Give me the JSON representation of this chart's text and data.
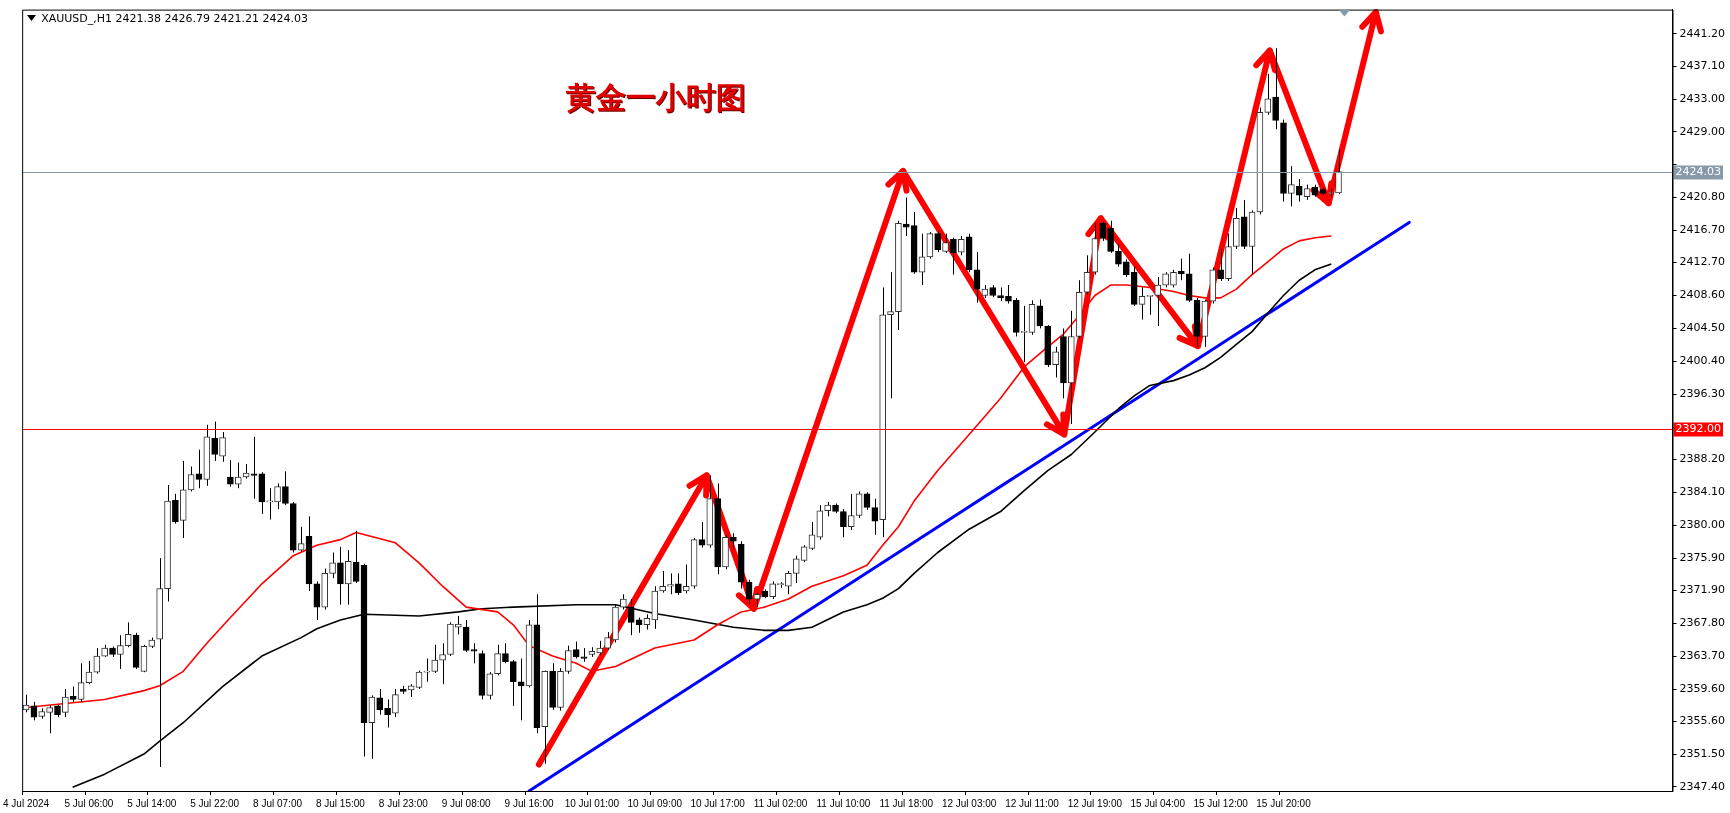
{
  "chart_data": {
    "type": "candlestick",
    "title": "XAUUSD_,H1  2421.38 2426.79 2421.21 2424.03",
    "subtitle": "黄金一小时图",
    "categories": [
      "4 Jul 2024",
      null,
      null,
      null,
      null,
      null,
      null,
      null,
      "5 Jul 06:00",
      null,
      null,
      null,
      null,
      null,
      null,
      null,
      "5 Jul 14:00",
      null,
      null,
      null,
      null,
      null,
      null,
      null,
      "5 Jul 22:00",
      null,
      null,
      null,
      null,
      null,
      null,
      null,
      "8 Jul 07:00",
      null,
      null,
      null,
      null,
      null,
      null,
      null,
      "8 Jul 15:00",
      null,
      null,
      null,
      null,
      null,
      null,
      null,
      "8 Jul 23:00",
      null,
      null,
      null,
      null,
      null,
      null,
      null,
      "9 Jul 08:00",
      null,
      null,
      null,
      null,
      null,
      null,
      null,
      "9 Jul 16:00",
      null,
      null,
      null,
      null,
      null,
      null,
      null,
      "10 Jul 01:00",
      null,
      null,
      null,
      null,
      null,
      null,
      null,
      "10 Jul 09:00",
      null,
      null,
      null,
      null,
      null,
      null,
      null,
      "10 Jul 17:00",
      null,
      null,
      null,
      null,
      null,
      null,
      null,
      "11 Jul 02:00",
      null,
      null,
      null,
      null,
      null,
      null,
      null,
      "11 Jul 10:00",
      null,
      null,
      null,
      null,
      null,
      null,
      null,
      "11 Jul 18:00",
      null,
      null,
      null,
      null,
      null,
      null,
      null,
      "12 Jul 03:00",
      null,
      null,
      null,
      null,
      null,
      null,
      null,
      "12 Jul 11:00",
      null,
      null,
      null,
      null,
      null,
      null,
      null,
      "12 Jul 19:00",
      null,
      null,
      null,
      null,
      null,
      null,
      null,
      "15 Jul 04:00",
      null,
      null,
      null,
      null,
      null,
      null,
      null,
      "15 Jul 12:00",
      null,
      null,
      null,
      null,
      null,
      null,
      null,
      "15 Jul 20:00",
      null,
      null,
      null,
      null,
      null,
      null,
      null,
      null,
      null,
      null,
      null,
      null,
      null,
      null,
      null,
      null,
      null,
      null,
      null,
      null,
      null,
      null,
      null,
      null,
      null,
      null,
      null,
      null,
      null,
      null,
      null,
      null,
      null,
      null,
      null,
      null,
      null,
      null,
      null,
      null,
      null,
      null,
      null,
      null,
      null,
      null,
      null,
      null,
      null
    ],
    "ohlc": [
      [
        2357.0,
        2358.9,
        2356.7,
        2357.6
      ],
      [
        2357.5,
        2358.0,
        2355.7,
        2356.1
      ],
      [
        2356.2,
        2357.2,
        2355.9,
        2356.8
      ],
      [
        2356.7,
        2357.6,
        2354.1,
        2357.3
      ],
      [
        2357.5,
        2357.6,
        2356.1,
        2356.4
      ],
      [
        2356.7,
        2359.6,
        2356.1,
        2358.6
      ],
      [
        2358.7,
        2359.9,
        2358.0,
        2358.3
      ],
      [
        2358.3,
        2362.8,
        2358.0,
        2360.4
      ],
      [
        2360.4,
        2363.1,
        2360.2,
        2361.7
      ],
      [
        2361.7,
        2364.7,
        2361.5,
        2363.7
      ],
      [
        2363.7,
        2365.1,
        2363.6,
        2364.7
      ],
      [
        2364.7,
        2364.9,
        2363.6,
        2363.9
      ],
      [
        2363.9,
        2366.3,
        2362.1,
        2365.0
      ],
      [
        2365.0,
        2367.9,
        2364.8,
        2366.4
      ],
      [
        2366.3,
        2366.6,
        2362.1,
        2362.3
      ],
      [
        2361.8,
        2365.1,
        2361.7,
        2364.9
      ],
      [
        2364.9,
        2366.0,
        2364.7,
        2365.7
      ],
      [
        2365.8,
        2375.9,
        2349.9,
        2372.1
      ],
      [
        2372.1,
        2385.0,
        2370.5,
        2383.0
      ],
      [
        2383.1,
        2383.9,
        2380.2,
        2380.4
      ],
      [
        2380.6,
        2388.0,
        2378.4,
        2384.4
      ],
      [
        2384.4,
        2387.3,
        2384.2,
        2386.3
      ],
      [
        2386.4,
        2389.4,
        2384.6,
        2385.7
      ],
      [
        2385.7,
        2392.5,
        2384.9,
        2391.0
      ],
      [
        2390.8,
        2392.9,
        2388.0,
        2388.8
      ],
      [
        2388.6,
        2391.6,
        2387.9,
        2390.9
      ],
      [
        2386.0,
        2388.1,
        2384.8,
        2385.1
      ],
      [
        2385.1,
        2387.8,
        2384.6,
        2386.0
      ],
      [
        2386.0,
        2387.6,
        2385.8,
        2386.5
      ],
      [
        2386.4,
        2391.0,
        2383.3,
        2386.2
      ],
      [
        2386.4,
        2386.6,
        2381.4,
        2382.9
      ],
      [
        2382.9,
        2384.6,
        2380.7,
        2382.9
      ],
      [
        2382.9,
        2385.2,
        2382.0,
        2384.8
      ],
      [
        2384.8,
        2386.7,
        2382.5,
        2382.7
      ],
      [
        2382.7,
        2382.9,
        2376.6,
        2376.9
      ],
      [
        2376.9,
        2379.8,
        2376.7,
        2377.7
      ],
      [
        2378.6,
        2381.1,
        2371.8,
        2372.7
      ],
      [
        2372.7,
        2373.0,
        2368.2,
        2369.8
      ],
      [
        2369.8,
        2374.6,
        2369.5,
        2374.0
      ],
      [
        2374.0,
        2376.6,
        2373.4,
        2375.3
      ],
      [
        2375.3,
        2377.3,
        2370.1,
        2372.7
      ],
      [
        2372.7,
        2376.9,
        2370.1,
        2375.5
      ],
      [
        2375.4,
        2379.3,
        2372.8,
        2373.0
      ],
      [
        2375.0,
        2375.2,
        2351.2,
        2355.4
      ],
      [
        2355.4,
        2358.8,
        2350.9,
        2358.6
      ],
      [
        2358.5,
        2359.6,
        2356.4,
        2357.0
      ],
      [
        2357.2,
        2358.3,
        2354.8,
        2356.4
      ],
      [
        2356.6,
        2359.6,
        2356.1,
        2358.9
      ],
      [
        2359.6,
        2360.0,
        2359.0,
        2359.3
      ],
      [
        2359.5,
        2360.2,
        2358.6,
        2360.0
      ],
      [
        2359.8,
        2361.9,
        2359.6,
        2361.7
      ],
      [
        2361.7,
        2363.4,
        2360.5,
        2361.8
      ],
      [
        2361.8,
        2365.1,
        2361.6,
        2363.2
      ],
      [
        2363.2,
        2365.3,
        2360.2,
        2363.9
      ],
      [
        2363.9,
        2367.9,
        2363.7,
        2367.7
      ],
      [
        2367.3,
        2368.7,
        2366.4,
        2367.7
      ],
      [
        2367.3,
        2368.2,
        2364.2,
        2364.4
      ],
      [
        2364.5,
        2365.3,
        2362.8,
        2364.3
      ],
      [
        2364.0,
        2364.4,
        2358.3,
        2358.8
      ],
      [
        2358.8,
        2361.7,
        2358.3,
        2361.5
      ],
      [
        2361.5,
        2365.1,
        2361.3,
        2364.0
      ],
      [
        2364.0,
        2365.3,
        2362.8,
        2363.0
      ],
      [
        2363.0,
        2363.2,
        2357.5,
        2360.5
      ],
      [
        2360.5,
        2363.4,
        2355.7,
        2360.0
      ],
      [
        2360.0,
        2368.2,
        2359.8,
        2367.6
      ],
      [
        2367.6,
        2371.4,
        2354.1,
        2354.8
      ],
      [
        2354.9,
        2361.9,
        2350.3,
        2361.8
      ],
      [
        2361.8,
        2362.8,
        2357.0,
        2357.3
      ],
      [
        2357.3,
        2362.2,
        2356.9,
        2361.8
      ],
      [
        2361.8,
        2365.0,
        2361.5,
        2364.4
      ],
      [
        2364.5,
        2365.5,
        2363.4,
        2363.6
      ],
      [
        2363.6,
        2364.7,
        2363.0,
        2363.4
      ],
      [
        2363.9,
        2364.8,
        2363.6,
        2364.3
      ],
      [
        2364.1,
        2365.6,
        2363.9,
        2364.7
      ],
      [
        2364.7,
        2366.7,
        2364.5,
        2366.0
      ],
      [
        2365.7,
        2370.1,
        2365.4,
        2369.8
      ],
      [
        2369.8,
        2371.4,
        2369.5,
        2370.8
      ],
      [
        2369.8,
        2370.8,
        2366.3,
        2367.9
      ],
      [
        2368.2,
        2368.5,
        2366.6,
        2367.6
      ],
      [
        2367.6,
        2368.9,
        2367.0,
        2368.4
      ],
      [
        2368.2,
        2372.4,
        2367.1,
        2371.8
      ],
      [
        2371.8,
        2374.3,
        2371.6,
        2372.4
      ],
      [
        2372.4,
        2374.0,
        2371.4,
        2372.6
      ],
      [
        2372.7,
        2374.0,
        2371.3,
        2371.6
      ],
      [
        2371.8,
        2375.1,
        2371.5,
        2372.4
      ],
      [
        2372.4,
        2378.4,
        2372.1,
        2378.2
      ],
      [
        2378.2,
        2380.4,
        2377.2,
        2377.5
      ],
      [
        2377.5,
        2386.2,
        2377.2,
        2383.3
      ],
      [
        2383.3,
        2385.2,
        2373.9,
        2374.8
      ],
      [
        2374.8,
        2378.8,
        2374.5,
        2378.5
      ],
      [
        2378.5,
        2379.0,
        2377.0,
        2378.0
      ],
      [
        2377.6,
        2378.0,
        2372.1,
        2372.9
      ],
      [
        2372.9,
        2373.2,
        2370.1,
        2370.8
      ],
      [
        2370.8,
        2371.6,
        2369.8,
        2371.4
      ],
      [
        2371.8,
        2372.0,
        2370.9,
        2371.1
      ],
      [
        2371.1,
        2373.0,
        2370.8,
        2372.7
      ],
      [
        2372.6,
        2372.9,
        2372.2,
        2372.6
      ],
      [
        2372.4,
        2374.3,
        2371.4,
        2374.0
      ],
      [
        2374.0,
        2376.2,
        2372.8,
        2375.8
      ],
      [
        2375.6,
        2377.5,
        2375.4,
        2377.3
      ],
      [
        2377.1,
        2380.4,
        2376.9,
        2378.8
      ],
      [
        2378.5,
        2382.5,
        2378.2,
        2381.8
      ],
      [
        2381.8,
        2382.9,
        2381.1,
        2382.5
      ],
      [
        2382.5,
        2382.7,
        2381.5,
        2381.7
      ],
      [
        2381.7,
        2382.0,
        2378.5,
        2379.8
      ],
      [
        2379.8,
        2383.9,
        2379.4,
        2381.2
      ],
      [
        2381.2,
        2384.2,
        2380.9,
        2383.9
      ],
      [
        2383.9,
        2384.1,
        2381.9,
        2382.2
      ],
      [
        2382.2,
        2383.3,
        2378.8,
        2380.5
      ],
      [
        2380.7,
        2409.6,
        2378.5,
        2406.2
      ],
      [
        2406.2,
        2411.5,
        2395.8,
        2406.6
      ],
      [
        2406.6,
        2417.9,
        2404.3,
        2417.6
      ],
      [
        2417.5,
        2420.8,
        2416.0,
        2417.1
      ],
      [
        2417.3,
        2419.0,
        2411.3,
        2411.5
      ],
      [
        2411.5,
        2416.3,
        2409.9,
        2413.4
      ],
      [
        2413.4,
        2416.5,
        2413.2,
        2416.3
      ],
      [
        2416.3,
        2416.6,
        2414.0,
        2414.3
      ],
      [
        2414.1,
        2416.3,
        2413.9,
        2415.2
      ],
      [
        2415.6,
        2415.8,
        2411.2,
        2413.9
      ],
      [
        2414.0,
        2416.0,
        2413.6,
        2415.6
      ],
      [
        2415.9,
        2416.3,
        2411.5,
        2411.8
      ],
      [
        2411.8,
        2414.0,
        2407.7,
        2409.4
      ],
      [
        2408.6,
        2409.9,
        2408.3,
        2409.4
      ],
      [
        2409.6,
        2409.9,
        2408.4,
        2408.6
      ],
      [
        2408.6,
        2409.6,
        2407.9,
        2408.3
      ],
      [
        2408.5,
        2409.9,
        2407.6,
        2407.9
      ],
      [
        2408.0,
        2408.3,
        2403.5,
        2404.0
      ],
      [
        2404.0,
        2407.3,
        2400.3,
        2404.0
      ],
      [
        2404.0,
        2408.0,
        2403.7,
        2407.5
      ],
      [
        2407.3,
        2408.1,
        2404.5,
        2404.8
      ],
      [
        2404.8,
        2404.9,
        2399.7,
        2400.0
      ],
      [
        2400.0,
        2402.2,
        2398.4,
        2401.6
      ],
      [
        2403.5,
        2404.5,
        2395.8,
        2397.7
      ],
      [
        2397.7,
        2406.7,
        2392.6,
        2403.5
      ],
      [
        2403.5,
        2410.5,
        2403.2,
        2409.0
      ],
      [
        2409.0,
        2413.6,
        2408.7,
        2411.5
      ],
      [
        2411.5,
        2417.6,
        2411.2,
        2415.7
      ],
      [
        2417.6,
        2417.9,
        2415.4,
        2415.7
      ],
      [
        2417.0,
        2417.9,
        2413.9,
        2414.1
      ],
      [
        2414.1,
        2415.0,
        2412.2,
        2412.5
      ],
      [
        2412.8,
        2413.1,
        2410.9,
        2411.2
      ],
      [
        2411.5,
        2412.2,
        2407.3,
        2407.5
      ],
      [
        2407.5,
        2409.6,
        2405.6,
        2408.5
      ],
      [
        2408.5,
        2408.6,
        2406.2,
        2408.5
      ],
      [
        2408.6,
        2410.9,
        2404.8,
        2409.9
      ],
      [
        2409.9,
        2411.5,
        2409.6,
        2411.3
      ],
      [
        2409.9,
        2411.8,
        2409.6,
        2411.5
      ],
      [
        2411.6,
        2413.2,
        2410.5,
        2411.3
      ],
      [
        2411.3,
        2413.8,
        2407.8,
        2408.0
      ],
      [
        2408.0,
        2408.3,
        2402.2,
        2403.5
      ],
      [
        2403.5,
        2408.1,
        2402.2,
        2407.9
      ],
      [
        2407.9,
        2412.1,
        2407.6,
        2411.8
      ],
      [
        2411.8,
        2414.4,
        2410.4,
        2410.7
      ],
      [
        2410.7,
        2416.3,
        2410.4,
        2414.7
      ],
      [
        2414.7,
        2419.5,
        2414.4,
        2418.2
      ],
      [
        2418.4,
        2420.5,
        2414.4,
        2414.7
      ],
      [
        2414.7,
        2419.2,
        2411.2,
        2419.0
      ],
      [
        2419.0,
        2432.0,
        2418.7,
        2431.4
      ],
      [
        2431.4,
        2436.2,
        2431.1,
        2433.1
      ],
      [
        2433.3,
        2439.4,
        2429.3,
        2430.4
      ],
      [
        2430.1,
        2430.5,
        2420.3,
        2421.3
      ],
      [
        2421.3,
        2424.7,
        2419.7,
        2422.4
      ],
      [
        2422.2,
        2423.1,
        2420.3,
        2421.1
      ],
      [
        2420.9,
        2422.4,
        2420.5,
        2421.9
      ],
      [
        2422.1,
        2422.4,
        2420.9,
        2421.1
      ],
      [
        2421.8,
        2422.1,
        2421.1,
        2421.3
      ],
      [
        2421.3,
        2421.9,
        2420.9,
        2421.4
      ],
      [
        2421.38,
        2426.79,
        2421.21,
        2424.03
      ],
      null,
      null,
      null,
      null,
      null,
      null,
      null,
      null,
      null,
      null,
      null,
      null,
      null,
      null,
      null,
      null,
      null,
      null,
      null,
      null,
      null,
      null,
      null,
      null,
      null,
      null,
      null,
      null,
      null,
      null,
      null,
      null,
      null,
      null,
      null,
      null,
      null,
      null,
      null,
      null,
      null,
      null
    ],
    "series": [
      {
        "type": "line",
        "color": "#ff0000",
        "values": [
          2357.3,
          null,
          null,
          null,
          null,
          2357.8,
          null,
          null,
          null,
          null,
          2358.3,
          null,
          null,
          null,
          null,
          2359.4,
          null,
          2360.0,
          null,
          null,
          2361.8,
          null,
          null,
          2365.3,
          null,
          null,
          2368.5,
          null,
          null,
          null,
          2372.7,
          null,
          null,
          null,
          2376.2,
          null,
          null,
          2377.5,
          null,
          null,
          2378.2,
          null,
          2379.1,
          null,
          null,
          null,
          null,
          2377.8,
          null,
          null,
          2375.3,
          null,
          null,
          2372.4,
          null,
          null,
          2369.8,
          null,
          null,
          null,
          2369.2,
          null,
          2367.6,
          null,
          2365.0,
          null,
          null,
          2363.7,
          null,
          null,
          2362.8,
          null,
          2361.8,
          null,
          null,
          2362.4,
          null,
          null,
          null,
          null,
          2364.7,
          null,
          null,
          null,
          null,
          2365.7,
          null,
          null,
          2367.6,
          null,
          null,
          2369.2,
          null,
          null,
          2369.8,
          null,
          null,
          2370.8,
          null,
          null,
          2372.4,
          null,
          null,
          null,
          2373.7,
          null,
          null,
          2375.0,
          null,
          2377.5,
          null,
          2379.8,
          null,
          2383.0,
          null,
          null,
          2386.8,
          null,
          null,
          null,
          2391.3,
          null,
          null,
          null,
          2395.8,
          null,
          null,
          2399.7,
          null,
          null,
          2402.2,
          null,
          2403.8,
          null,
          2406.1,
          null,
          2408.6,
          null,
          2409.9,
          null,
          2409.9,
          null,
          null,
          2409.6,
          null,
          null,
          2409.1,
          null,
          2408.6,
          null,
          2408.3,
          null,
          2408.3,
          null,
          2409.4,
          null,
          2411.2,
          null,
          2412.8,
          null,
          2414.4,
          null,
          2415.4,
          null,
          2415.8,
          null,
          2416.0,
          null,
          null,
          null,
          null,
          null,
          null,
          null,
          null,
          null,
          null,
          null,
          null,
          null,
          null,
          null,
          null,
          null,
          null,
          null,
          null,
          null,
          null,
          null,
          null,
          null,
          null,
          null,
          null,
          null,
          null,
          null,
          null,
          null,
          null,
          null,
          null,
          null,
          null,
          null,
          null,
          null,
          null,
          null
        ]
      },
      {
        "type": "line",
        "color": "#000000",
        "values": [
          null,
          null,
          null,
          null,
          null,
          null,
          2347.4,
          null,
          null,
          null,
          2349.0,
          null,
          null,
          null,
          null,
          2351.5,
          null,
          2353.1,
          null,
          null,
          2355.4,
          null,
          null,
          null,
          null,
          2359.9,
          null,
          null,
          null,
          null,
          2363.7,
          null,
          null,
          null,
          null,
          2366.0,
          null,
          2367.1,
          null,
          null,
          2368.2,
          null,
          null,
          2368.9,
          null,
          null,
          null,
          null,
          null,
          null,
          2368.7,
          null,
          null,
          null,
          null,
          2369.2,
          null,
          null,
          2369.6,
          null,
          null,
          null,
          2369.8,
          null,
          null,
          null,
          null,
          null,
          null,
          null,
          2370.1,
          null,
          null,
          null,
          null,
          2370.1,
          null,
          null,
          null,
          null,
          2369.0,
          null,
          null,
          null,
          null,
          2368.2,
          null,
          null,
          null,
          null,
          2367.3,
          null,
          null,
          null,
          2366.9,
          null,
          null,
          2366.9,
          null,
          null,
          2367.3,
          null,
          null,
          null,
          2369.2,
          null,
          null,
          2370.1,
          null,
          2370.9,
          null,
          2372.1,
          null,
          2374.0,
          null,
          null,
          2376.6,
          null,
          null,
          null,
          2379.5,
          null,
          null,
          null,
          2381.7,
          null,
          null,
          2384.3,
          null,
          null,
          2386.8,
          null,
          null,
          2388.8,
          null,
          null,
          2391.6,
          null,
          null,
          2394.5,
          null,
          2396.1,
          null,
          2397.4,
          null,
          null,
          2398.0,
          null,
          2398.7,
          null,
          2399.6,
          null,
          2400.9,
          null,
          2402.5,
          null,
          2404.1,
          null,
          2406.4,
          null,
          2408.6,
          null,
          2410.5,
          null,
          2411.8,
          null,
          2412.5,
          null,
          null,
          null,
          null,
          null,
          null,
          null,
          null,
          null,
          null,
          null,
          null,
          null,
          null,
          null,
          null,
          null,
          null,
          null,
          null,
          null,
          null,
          null,
          null,
          null,
          null,
          null,
          null,
          null,
          null,
          null,
          null,
          null,
          null,
          null,
          null,
          null,
          null,
          null,
          null,
          null,
          null,
          null
        ]
      },
      {
        "type": "line",
        "color": "#0000ff",
        "values": [
          null,
          null,
          null,
          null,
          null,
          null,
          null,
          null,
          null,
          null,
          null,
          null,
          null,
          null,
          null,
          null,
          null,
          null,
          null,
          null,
          null,
          null,
          null,
          null,
          null,
          null,
          null,
          null,
          null,
          null,
          null,
          null,
          null,
          null,
          null,
          null,
          null,
          null,
          null,
          null,
          null,
          null,
          null,
          null,
          null,
          null,
          null,
          null,
          null,
          null,
          null,
          null,
          null,
          null,
          null,
          null,
          null,
          null,
          null,
          null,
          null,
          null,
          null,
          null,
          2346.9,
          null,
          null,
          null,
          null,
          null,
          null,
          null,
          null,
          null,
          null,
          null,
          null,
          null,
          null,
          null,
          null,
          null,
          null,
          null,
          null,
          null,
          null,
          null,
          null,
          null,
          null,
          null,
          null,
          null,
          null,
          null,
          null,
          null,
          null,
          null,
          null,
          null,
          null,
          null,
          null,
          null,
          null,
          null,
          null,
          null,
          null,
          null,
          null,
          null,
          null,
          null,
          null,
          null,
          null,
          null,
          null,
          null,
          null,
          null,
          null,
          null,
          null,
          null,
          null,
          null,
          null,
          null,
          null,
          null,
          null,
          null,
          null,
          null,
          null,
          null,
          null,
          null,
          null,
          null,
          null,
          null,
          null,
          null,
          null,
          null,
          null,
          null,
          null,
          null,
          null,
          null,
          null,
          null,
          null,
          null,
          null,
          null,
          null,
          null,
          null,
          null,
          null,
          null,
          null,
          null,
          null,
          null,
          null,
          null,
          null,
          null,
          2417.7,
          null,
          null,
          null,
          null,
          null,
          null,
          null,
          null,
          null,
          null,
          null,
          null,
          null,
          null,
          null,
          null,
          null,
          null,
          null,
          null,
          null,
          null,
          null,
          null,
          null,
          null,
          null,
          null,
          null,
          null,
          null,
          null,
          null
        ]
      }
    ],
    "ylim": [
      2346.9,
      2444.2
    ],
    "yticks": [
      {
        "value": 2441.2,
        "label": "2441.20"
      },
      {
        "value": 2437.1,
        "label": "2437.10"
      },
      {
        "value": 2433,
        "label": "2433.00"
      },
      {
        "value": 2429,
        "label": "2429.00"
      },
      {
        "value": 2424.9,
        "label": null
      },
      {
        "value": 2420.8,
        "label": "2420.80"
      },
      {
        "value": 2416.7,
        "label": "2416.70"
      },
      {
        "value": 2412.7,
        "label": "2412.70"
      },
      {
        "value": 2408.6,
        "label": "2408.60"
      },
      {
        "value": 2404.5,
        "label": "2404.50"
      },
      {
        "value": 2400.4,
        "label": "2400.40"
      },
      {
        "value": 2396.3,
        "label": "2396.30"
      },
      {
        "value": 2392.2,
        "label": null
      },
      {
        "value": 2388.2,
        "label": "2388.20"
      },
      {
        "value": 2384.1,
        "label": "2384.10"
      },
      {
        "value": 2380,
        "label": "2380.00"
      },
      {
        "value": 2375.9,
        "label": "2375.90"
      },
      {
        "value": 2371.9,
        "label": "2371.90"
      },
      {
        "value": 2367.8,
        "label": "2367.80"
      },
      {
        "value": 2363.7,
        "label": "2363.70"
      },
      {
        "value": 2359.6,
        "label": "2359.60"
      },
      {
        "value": 2355.6,
        "label": "2355.60"
      },
      {
        "value": 2351.5,
        "label": "2351.50"
      },
      {
        "value": 2347.4,
        "label": "2347.40"
      }
    ],
    "ref_lines": [
      {
        "axis": "y",
        "value": 2392,
        "label": "2392.00",
        "color": "#ff0000"
      },
      {
        "axis": "y",
        "value": 2424.03,
        "label": "2424.03",
        "color": "#8899aa"
      }
    ],
    "grid": false,
    "legend": false,
    "marker": "none"
  }
}
